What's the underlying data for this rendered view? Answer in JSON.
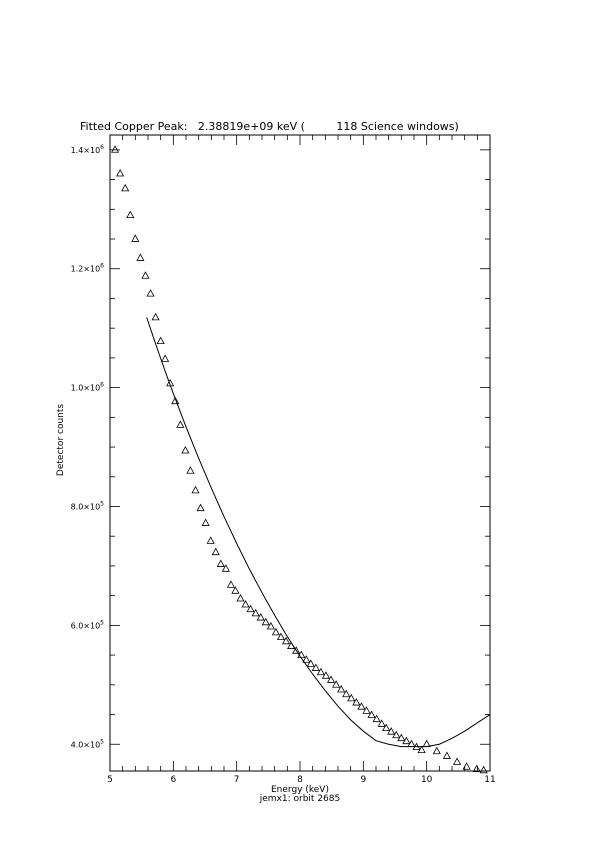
{
  "chart_data": {
    "type": "scatter",
    "title": "Fitted Copper Peak:   2.38819e+09 keV (         118 Science windows)",
    "xlabel": "Energy (keV)",
    "ylabel": "Detector counts",
    "subtitle": "jemx1: orbit 2685",
    "xlim": [
      5,
      11
    ],
    "ylim": [
      355000,
      1425000
    ],
    "x_ticks": [
      {
        "v": 5,
        "label": "5"
      },
      {
        "v": 6,
        "label": "6"
      },
      {
        "v": 7,
        "label": "7"
      },
      {
        "v": 8,
        "label": "8"
      },
      {
        "v": 9,
        "label": "9"
      },
      {
        "v": 10,
        "label": "10"
      },
      {
        "v": 11,
        "label": "11"
      }
    ],
    "y_ticks": [
      {
        "v": 400000,
        "mant": "4.0×10",
        "exp": "5"
      },
      {
        "v": 600000,
        "mant": "6.0×10",
        "exp": "5"
      },
      {
        "v": 800000,
        "mant": "8.0×10",
        "exp": "5"
      },
      {
        "v": 1000000,
        "mant": "1.0×10",
        "exp": "6"
      },
      {
        "v": 1200000,
        "mant": "1.2×10",
        "exp": "6"
      },
      {
        "v": 1400000,
        "mant": "1.4×10",
        "exp": "6"
      }
    ],
    "grid": false,
    "series": [
      {
        "marker": "triangle",
        "x": [
          5.08,
          5.16,
          5.24,
          5.32,
          5.4,
          5.48,
          5.56,
          5.64,
          5.72,
          5.8,
          5.87,
          5.95,
          6.03,
          6.11,
          6.19,
          6.27,
          6.35,
          6.43,
          6.51,
          6.59,
          6.67,
          6.75,
          6.83,
          6.91,
          6.98,
          7.06,
          7.14,
          7.22,
          7.3,
          7.38,
          7.46,
          7.54,
          7.62,
          7.7,
          7.78,
          7.86,
          7.94,
          8.02,
          8.1,
          8.17,
          8.25,
          8.33,
          8.41,
          8.49,
          8.57,
          8.65,
          8.73,
          8.81,
          8.89,
          8.97,
          9.05,
          9.13,
          9.21,
          9.29,
          9.36,
          9.44,
          9.52,
          9.6,
          9.68,
          9.76,
          9.84,
          9.92,
          10.0,
          10.16,
          10.32,
          10.48,
          10.63,
          10.79,
          10.9
        ],
        "y": [
          1400000,
          1360000,
          1335000,
          1290000,
          1250000,
          1218000,
          1188000,
          1158000,
          1118000,
          1078000,
          1048000,
          1007000,
          977000,
          937000,
          894000,
          860000,
          827000,
          797000,
          772000,
          742000,
          723000,
          703000,
          695000,
          668000,
          658000,
          645000,
          635000,
          627000,
          620000,
          613000,
          605000,
          598000,
          588000,
          580000,
          573000,
          565000,
          557000,
          550000,
          542000,
          535000,
          528000,
          521000,
          515000,
          508000,
          500000,
          492000,
          484000,
          477000,
          470000,
          463000,
          456000,
          449000,
          442000,
          434000,
          427000,
          421000,
          415000,
          410000,
          405000,
          400000,
          395000,
          390000,
          400000,
          388000,
          380000,
          370000,
          362000,
          358000,
          356000
        ]
      },
      {
        "marker": "line",
        "x": [
          5.58,
          5.7,
          5.8,
          5.9,
          6.0,
          6.2,
          6.4,
          6.6,
          6.8,
          7.0,
          7.2,
          7.4,
          7.6,
          7.8,
          8.0,
          8.2,
          8.4,
          8.6,
          8.8,
          9.0,
          9.2,
          9.4,
          9.6,
          9.8,
          9.9,
          10.0,
          10.2,
          10.4,
          10.6,
          10.8,
          11.0
        ],
        "y": [
          1118000,
          1080000,
          1049000,
          1019000,
          990000,
          934000,
          881000,
          831000,
          783000,
          738000,
          695000,
          655000,
          617000,
          581000,
          548000,
          518000,
          490000,
          464000,
          441000,
          422000,
          406000,
          400000,
          396000,
          396000,
          396000,
          396000,
          400000,
          410000,
          422000,
          436000,
          450000
        ]
      }
    ]
  }
}
